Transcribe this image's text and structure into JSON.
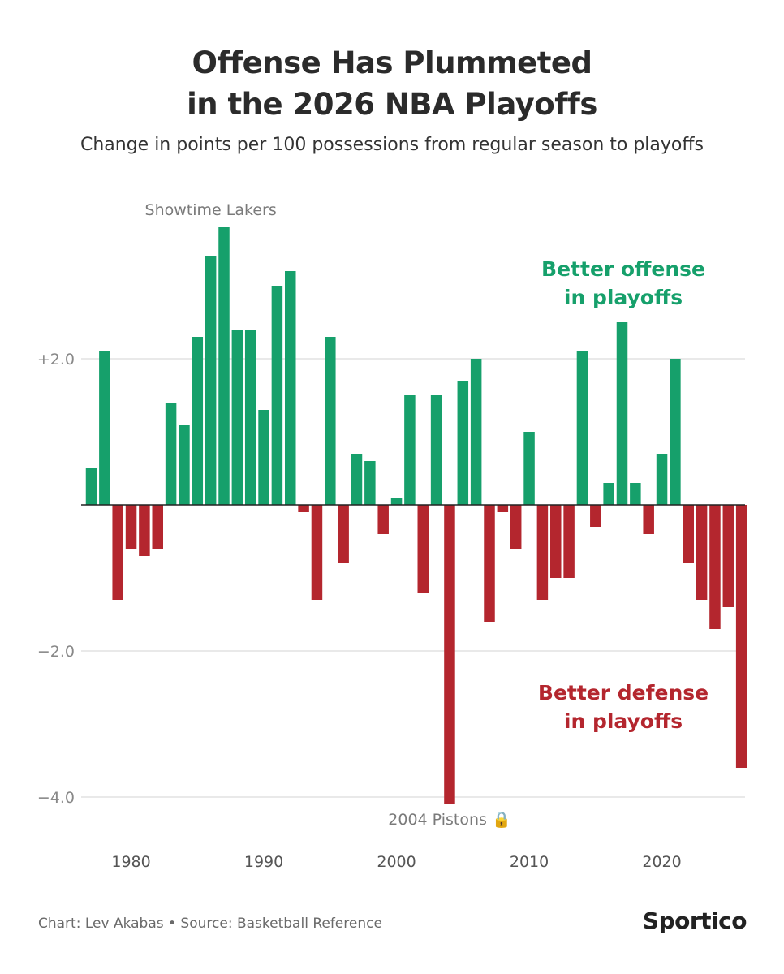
{
  "header": {
    "title_line1": "Offense Has Plummeted",
    "title_line2": "in the 2026 NBA Playoffs",
    "subtitle": "Change in points per 100 possessions from regular season to playoffs"
  },
  "footer": {
    "credit": "Chart: Lev Akabas • Source: Basketball Reference",
    "logo": "Sportico"
  },
  "colors": {
    "positive": "#16a06b",
    "negative": "#b4262e",
    "grid": "#dcdcdc",
    "tick": "#888888",
    "annotation": "#7a7a7a"
  },
  "chart_data": {
    "type": "bar",
    "title": "Offense Has Plummeted in the 2026 NBA Playoffs",
    "subtitle": "Change in points per 100 possessions from regular season to playoffs",
    "xlabel": "",
    "ylabel": "",
    "ylim": [
      -4.6,
      3.9
    ],
    "grid": true,
    "yticks": [
      2.0,
      -2.0,
      -4.0
    ],
    "ytick_labels": [
      "+2.0",
      "−2.0",
      "−4.0"
    ],
    "xticks": [
      1980,
      1990,
      2000,
      2010,
      2020
    ],
    "xtick_labels": [
      "1980",
      "1990",
      "2000",
      "2010",
      "2020"
    ],
    "categories": [
      1977,
      1978,
      1979,
      1980,
      1981,
      1982,
      1983,
      1984,
      1985,
      1986,
      1987,
      1988,
      1989,
      1990,
      1991,
      1992,
      1993,
      1994,
      1995,
      1996,
      1997,
      1998,
      1999,
      2000,
      2001,
      2002,
      2003,
      2004,
      2005,
      2006,
      2007,
      2008,
      2009,
      2010,
      2011,
      2012,
      2013,
      2014,
      2015,
      2016,
      2017,
      2018,
      2019,
      2020,
      2021,
      2022,
      2023,
      2024,
      2025,
      2026
    ],
    "values": [
      0.5,
      2.1,
      -1.3,
      -0.6,
      -0.7,
      -0.6,
      1.4,
      1.1,
      2.3,
      3.4,
      3.8,
      2.4,
      2.4,
      1.3,
      3.0,
      3.2,
      -0.1,
      -1.3,
      2.3,
      -0.8,
      0.7,
      0.6,
      -0.4,
      0.1,
      1.5,
      -1.2,
      1.5,
      -4.1,
      1.7,
      2.0,
      -1.6,
      -0.1,
      -0.6,
      1.0,
      -1.3,
      -1.0,
      -1.0,
      2.1,
      -0.3,
      0.3,
      2.5,
      0.3,
      -0.4,
      0.7,
      2.0,
      -0.8,
      -1.3,
      -1.7,
      -1.4,
      -3.6
    ],
    "annotations": [
      {
        "text": "Showtime Lakers",
        "anchor_x": 1986
      },
      {
        "text": "2004 Pistons 🔒",
        "anchor_x": 2004
      }
    ],
    "legend_labels": {
      "positive": [
        "Better offense",
        "in playoffs"
      ],
      "negative": [
        "Better defense",
        "in playoffs"
      ]
    }
  }
}
